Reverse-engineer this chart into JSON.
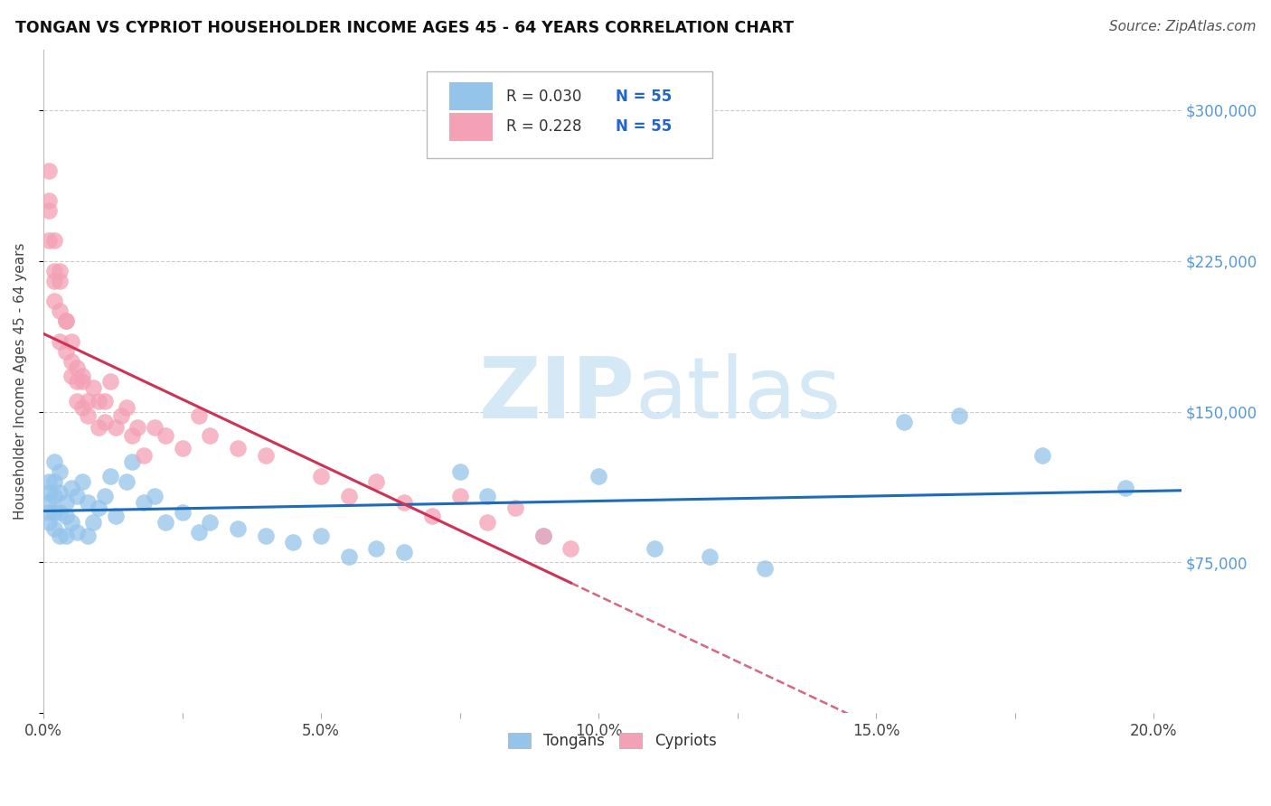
{
  "title": "TONGAN VS CYPRIOT HOUSEHOLDER INCOME AGES 45 - 64 YEARS CORRELATION CHART",
  "source": "Source: ZipAtlas.com",
  "ylabel": "Householder Income Ages 45 - 64 years",
  "xlim": [
    0.0,
    0.205
  ],
  "ylim": [
    0,
    330000
  ],
  "xtick_labels": [
    "0.0%",
    "",
    "5.0%",
    "",
    "10.0%",
    "",
    "15.0%",
    "",
    "20.0%"
  ],
  "xtick_vals": [
    0.0,
    0.025,
    0.05,
    0.075,
    0.1,
    0.125,
    0.15,
    0.175,
    0.2
  ],
  "ytick_vals": [
    0,
    75000,
    150000,
    225000,
    300000
  ],
  "right_ytick_labels": [
    "$75,000",
    "$150,000",
    "$225,000",
    "$300,000"
  ],
  "right_ytick_vals": [
    75000,
    150000,
    225000,
    300000
  ],
  "tongan_R": "0.030",
  "tongan_N": "55",
  "cypriot_R": "0.228",
  "cypriot_N": "55",
  "tongan_color": "#94C4EA",
  "cypriot_color": "#F4A0B5",
  "trend_tongan_color": "#1E6BB8",
  "trend_cypriot_color": "#CC3355",
  "background_color": "#FFFFFF",
  "grid_color": "#CCCCCC",
  "watermark_color": "#D5E8F5",
  "tongan_x": [
    0.001,
    0.001,
    0.001,
    0.001,
    0.001,
    0.002,
    0.002,
    0.002,
    0.002,
    0.002,
    0.003,
    0.003,
    0.003,
    0.003,
    0.004,
    0.004,
    0.004,
    0.005,
    0.005,
    0.006,
    0.006,
    0.007,
    0.008,
    0.008,
    0.009,
    0.01,
    0.011,
    0.012,
    0.013,
    0.015,
    0.016,
    0.018,
    0.02,
    0.022,
    0.025,
    0.028,
    0.03,
    0.035,
    0.04,
    0.045,
    0.05,
    0.055,
    0.06,
    0.065,
    0.075,
    0.08,
    0.09,
    0.1,
    0.11,
    0.12,
    0.13,
    0.155,
    0.165,
    0.18,
    0.195
  ],
  "tongan_y": [
    115000,
    110000,
    105000,
    100000,
    95000,
    125000,
    115000,
    108000,
    100000,
    92000,
    120000,
    110000,
    100000,
    88000,
    105000,
    98000,
    88000,
    112000,
    95000,
    108000,
    90000,
    115000,
    105000,
    88000,
    95000,
    102000,
    108000,
    118000,
    98000,
    115000,
    125000,
    105000,
    108000,
    95000,
    100000,
    90000,
    95000,
    92000,
    88000,
    85000,
    88000,
    78000,
    82000,
    80000,
    120000,
    108000,
    88000,
    118000,
    82000,
    78000,
    72000,
    145000,
    148000,
    128000,
    112000
  ],
  "cypriot_x": [
    0.001,
    0.001,
    0.001,
    0.001,
    0.002,
    0.002,
    0.002,
    0.002,
    0.003,
    0.003,
    0.003,
    0.003,
    0.004,
    0.004,
    0.004,
    0.005,
    0.005,
    0.005,
    0.006,
    0.006,
    0.006,
    0.007,
    0.007,
    0.007,
    0.008,
    0.008,
    0.009,
    0.01,
    0.01,
    0.011,
    0.011,
    0.012,
    0.013,
    0.014,
    0.015,
    0.016,
    0.017,
    0.018,
    0.02,
    0.022,
    0.025,
    0.028,
    0.03,
    0.035,
    0.04,
    0.05,
    0.055,
    0.06,
    0.065,
    0.07,
    0.075,
    0.08,
    0.085,
    0.09,
    0.095
  ],
  "cypriot_y": [
    270000,
    250000,
    235000,
    255000,
    235000,
    215000,
    205000,
    220000,
    220000,
    200000,
    185000,
    215000,
    195000,
    180000,
    195000,
    175000,
    168000,
    185000,
    165000,
    155000,
    172000,
    165000,
    152000,
    168000,
    155000,
    148000,
    162000,
    155000,
    142000,
    155000,
    145000,
    165000,
    142000,
    148000,
    152000,
    138000,
    142000,
    128000,
    142000,
    138000,
    132000,
    148000,
    138000,
    132000,
    128000,
    118000,
    108000,
    115000,
    105000,
    98000,
    108000,
    95000,
    102000,
    88000,
    82000
  ],
  "trend_cypriot_x_start": 0.0,
  "trend_cypriot_x_end": 0.2,
  "trend_cypriot_solid_end": 0.095,
  "trend_tongan_x_start": 0.0,
  "trend_tongan_x_end": 0.205
}
